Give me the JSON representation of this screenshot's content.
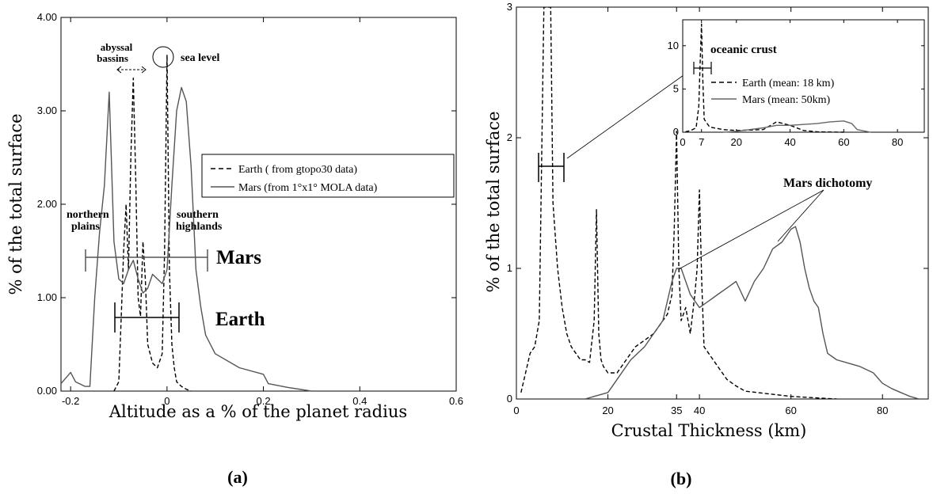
{
  "chart_data": [
    {
      "type": "line",
      "panel_label": "(a)",
      "xlabel": "Altitude as a % of the planet radius",
      "ylabel": "% of the total surface",
      "xlim": [
        -0.22,
        0.6
      ],
      "ylim": [
        0,
        4.0
      ],
      "x_ticks": [
        "-0.2",
        "0",
        "0.2",
        "0.4",
        "0.6"
      ],
      "y_ticks": [
        "0.00",
        "1.00",
        "2.00",
        "3.00",
        "4.00"
      ],
      "legend": {
        "placement": "right",
        "entries": [
          "Earth ( from gtopo30 data)",
          "Mars (from 1°x1° MOLA data)"
        ]
      },
      "annotations": {
        "abyssal_1": "abyssal",
        "abyssal_2": "bassins",
        "sea_level": "sea level",
        "northern_1": "northern",
        "northern_2": "plains",
        "southern_1": "southern",
        "southern_2": "highlands",
        "mars": "Mars",
        "earth": "Earth"
      },
      "series": [
        {
          "name": "Earth ( from gtopo30 data)",
          "style": "dashed",
          "x": [
            -0.11,
            -0.1,
            -0.095,
            -0.09,
            -0.085,
            -0.08,
            -0.075,
            -0.07,
            -0.065,
            -0.06,
            -0.055,
            -0.05,
            -0.045,
            -0.04,
            -0.03,
            -0.02,
            -0.01,
            -0.005,
            0.0,
            0.005,
            0.01,
            0.015,
            0.02,
            0.03,
            0.04,
            0.05
          ],
          "y": [
            0.0,
            0.1,
            0.8,
            1.5,
            2.0,
            1.3,
            2.5,
            3.35,
            2.3,
            1.0,
            0.8,
            1.6,
            1.2,
            0.5,
            0.3,
            0.25,
            0.4,
            1.5,
            3.6,
            1.3,
            0.5,
            0.25,
            0.1,
            0.05,
            0.02,
            0.0
          ]
        },
        {
          "name": "Mars (from 1°x1° MOLA data)",
          "style": "solid",
          "x": [
            -0.22,
            -0.2,
            -0.19,
            -0.17,
            -0.16,
            -0.15,
            -0.14,
            -0.13,
            -0.12,
            -0.11,
            -0.1,
            -0.09,
            -0.08,
            -0.07,
            -0.06,
            -0.05,
            -0.04,
            -0.03,
            -0.02,
            -0.01,
            0.0,
            0.01,
            0.02,
            0.03,
            0.04,
            0.05,
            0.06,
            0.07,
            0.08,
            0.1,
            0.15,
            0.2,
            0.21,
            0.25,
            0.3
          ],
          "y": [
            0.08,
            0.2,
            0.1,
            0.05,
            0.05,
            1.0,
            1.7,
            2.2,
            3.2,
            1.6,
            1.2,
            1.15,
            1.3,
            1.4,
            1.2,
            1.05,
            1.1,
            1.25,
            1.2,
            1.15,
            1.3,
            2.2,
            3.0,
            3.25,
            3.1,
            2.4,
            1.3,
            0.9,
            0.6,
            0.4,
            0.25,
            0.18,
            0.08,
            0.04,
            0.0
          ]
        }
      ]
    },
    {
      "type": "line",
      "panel_label": "(b)",
      "xlabel": "Crustal Thickness (km)",
      "ylabel": "% of the total surface",
      "xlim": [
        0,
        90
      ],
      "ylim": [
        0,
        3
      ],
      "x_ticks": [
        "0",
        "20",
        "35",
        "40",
        "60",
        "80"
      ],
      "y_ticks": [
        "0",
        "1",
        "2",
        "3"
      ],
      "annotations": {
        "oceanic_crust": "oceanic crust",
        "mars_dichotomy": "Mars dichotomy"
      },
      "inset": {
        "xlim": [
          0,
          90
        ],
        "ylim": [
          0,
          13
        ],
        "x_ticks": [
          "0",
          "7",
          "20",
          "40",
          "60",
          "80"
        ],
        "y_ticks": [
          "0",
          "5",
          "10"
        ],
        "legend_entries": [
          "Earth (mean: 18 km)",
          "Mars (mean: 50km)"
        ],
        "series": [
          {
            "name": "Earth (mean: 18 km)",
            "style": "dashed",
            "x": [
              1,
              3,
              5,
              6,
              6.5,
              7,
              7.5,
              8,
              10,
              15,
              20,
              30,
              35,
              40,
              45,
              50,
              60
            ],
            "y": [
              0.05,
              0.2,
              0.5,
              3,
              8,
              12.5,
              6,
              1.5,
              0.6,
              0.3,
              0.2,
              0.3,
              1.2,
              0.8,
              0.2,
              0.05,
              0.0
            ]
          },
          {
            "name": "Mars (mean: 50km)",
            "style": "solid",
            "x": [
              15,
              20,
              25,
              30,
              35,
              40,
              45,
              50,
              55,
              60,
              63,
              65,
              70
            ],
            "y": [
              0.0,
              0.1,
              0.3,
              0.5,
              0.8,
              0.8,
              0.9,
              1.0,
              1.2,
              1.3,
              1.0,
              0.3,
              0.0
            ]
          }
        ]
      },
      "series": [
        {
          "name": "Earth (mean: 18 km)",
          "style": "dashed",
          "x": [
            1,
            2,
            3,
            4,
            5,
            6,
            6.5,
            7,
            7.5,
            8,
            9,
            10,
            11,
            12,
            13,
            14,
            15,
            16,
            17,
            17.5,
            18,
            18.5,
            19,
            20,
            22,
            24,
            26,
            28,
            30,
            31,
            32,
            33,
            34,
            34.5,
            35,
            35.5,
            36,
            37,
            38,
            39,
            39.5,
            40,
            40.5,
            41,
            42,
            44,
            46,
            48,
            50,
            55,
            60,
            65,
            70
          ],
          "y": [
            0.05,
            0.2,
            0.35,
            0.4,
            0.6,
            3.0,
            3.0,
            3.0,
            3.0,
            1.5,
            1.0,
            0.7,
            0.5,
            0.4,
            0.35,
            0.3,
            0.3,
            0.28,
            0.6,
            1.45,
            0.5,
            0.3,
            0.25,
            0.2,
            0.2,
            0.3,
            0.4,
            0.45,
            0.5,
            0.55,
            0.6,
            0.65,
            0.8,
            1.3,
            2.05,
            1.0,
            0.6,
            0.7,
            0.5,
            0.8,
            1.0,
            1.6,
            0.9,
            0.4,
            0.35,
            0.25,
            0.15,
            0.1,
            0.06,
            0.04,
            0.02,
            0.01,
            0.0
          ]
        },
        {
          "name": "Mars (mean: 50km)",
          "style": "solid",
          "x": [
            15,
            17,
            20,
            22,
            25,
            28,
            30,
            32,
            34,
            35,
            36,
            38,
            40,
            42,
            44,
            46,
            48,
            50,
            52,
            54,
            56,
            58,
            60,
            61,
            62,
            63,
            64,
            65,
            66,
            67,
            68,
            70,
            72,
            75,
            78,
            80,
            82,
            84,
            86,
            88
          ],
          "y": [
            0.0,
            0.02,
            0.05,
            0.15,
            0.3,
            0.4,
            0.5,
            0.6,
            0.9,
            1.0,
            1.0,
            0.8,
            0.7,
            0.75,
            0.8,
            0.85,
            0.9,
            0.75,
            0.9,
            1.0,
            1.15,
            1.2,
            1.3,
            1.32,
            1.2,
            1.0,
            0.85,
            0.75,
            0.7,
            0.5,
            0.35,
            0.3,
            0.28,
            0.25,
            0.2,
            0.12,
            0.08,
            0.05,
            0.02,
            0.0
          ]
        }
      ]
    }
  ]
}
